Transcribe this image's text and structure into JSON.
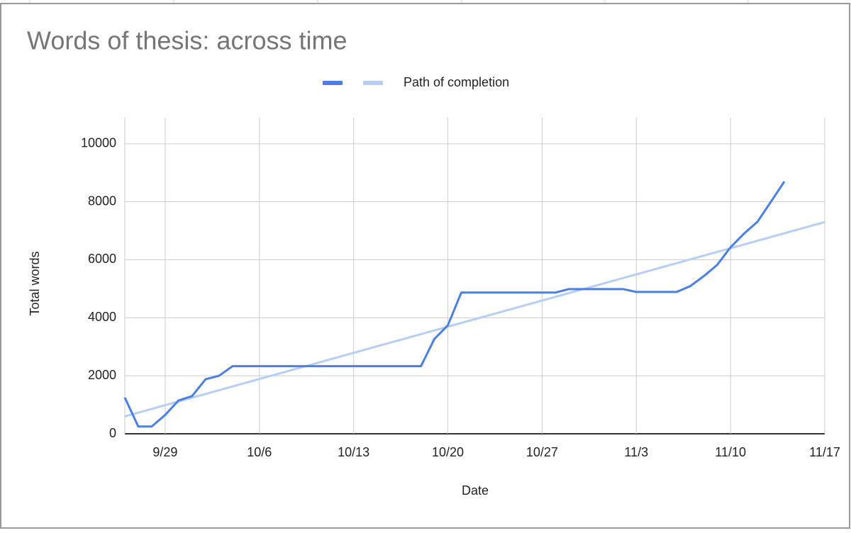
{
  "chart_data": {
    "type": "line",
    "title": "Words of thesis: across time",
    "x_label": "Date",
    "y_label": "Total words",
    "series": [
      {
        "name": null,
        "color": "#4a7fe3",
        "x": [
          "9/26",
          "9/27",
          "9/28",
          "9/29",
          "9/30",
          "10/1",
          "10/2",
          "10/3",
          "10/4",
          "10/18",
          "10/19",
          "10/20",
          "10/21",
          "10/28",
          "10/29",
          "11/2",
          "11/3",
          "11/6",
          "11/7",
          "11/8",
          "11/9",
          "11/10",
          "11/11",
          "11/12",
          "11/13",
          "11/14"
        ],
        "values": [
          1250,
          250,
          250,
          650,
          1150,
          1300,
          1880,
          2000,
          2330,
          2330,
          3270,
          3740,
          4870,
          4870,
          4990,
          4990,
          4890,
          4890,
          5090,
          5430,
          5820,
          6430,
          6900,
          7310,
          8000,
          8700
        ]
      },
      {
        "name": "Path of completion",
        "color": "#b6cdf5",
        "x": [
          "9/26",
          "11/17"
        ],
        "values": [
          600,
          7300
        ]
      }
    ],
    "xlim": [
      "9/26",
      "11/17"
    ],
    "xticks": [
      "9/29",
      "10/6",
      "10/13",
      "10/20",
      "10/27",
      "11/3",
      "11/10",
      "11/17"
    ],
    "ylim": [
      0,
      10900
    ],
    "yticks": [
      0,
      2000,
      4000,
      6000,
      8000,
      10000
    ],
    "grid": true
  }
}
